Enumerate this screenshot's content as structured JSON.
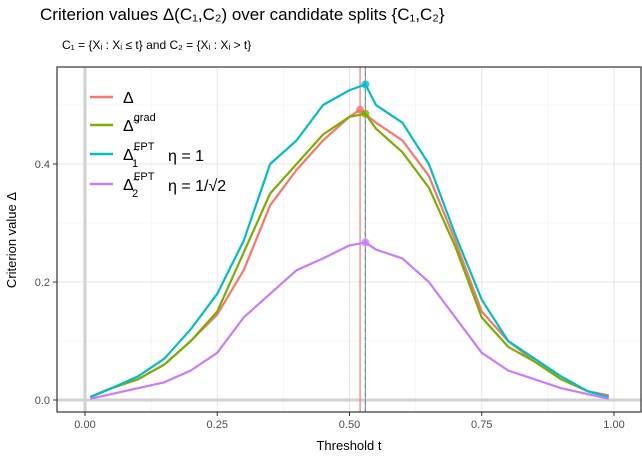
{
  "chart_data": {
    "type": "line",
    "title": "Criterion values Δ(C₁,C₂) over candidate splits {C₁,C₂}",
    "subtitle": "C₁ = {Xᵢ : Xᵢ ≤ t} and C₂ = {Xᵢ : Xᵢ > t}",
    "xlabel": "Threshold t",
    "ylabel": "Criterion value Δ",
    "xlim": [
      -0.04,
      1.04
    ],
    "ylim": [
      -0.01,
      0.565
    ],
    "xticks": [
      "0.00",
      "0.25",
      "0.50",
      "0.75",
      "1.00"
    ],
    "yticks": [
      "0.0",
      "0.2",
      "0.4"
    ],
    "grid": true,
    "legend_position": "top-left",
    "series": [
      {
        "name": "Δ",
        "color": "#F8766D",
        "x": [
          0.01,
          0.05,
          0.1,
          0.15,
          0.2,
          0.25,
          0.3,
          0.35,
          0.4,
          0.45,
          0.5,
          0.52,
          0.55,
          0.6,
          0.65,
          0.7,
          0.75,
          0.8,
          0.85,
          0.9,
          0.95,
          0.99
        ],
        "y": [
          0.005,
          0.02,
          0.035,
          0.06,
          0.1,
          0.145,
          0.22,
          0.33,
          0.39,
          0.44,
          0.48,
          0.492,
          0.47,
          0.44,
          0.38,
          0.27,
          0.15,
          0.1,
          0.065,
          0.04,
          0.015,
          0.008
        ],
        "max_x": 0.52,
        "max_y": 0.492
      },
      {
        "name": "Δ̃ grad",
        "color": "#7CAE00",
        "x": [
          0.01,
          0.05,
          0.1,
          0.15,
          0.2,
          0.25,
          0.3,
          0.35,
          0.4,
          0.45,
          0.5,
          0.53,
          0.55,
          0.6,
          0.65,
          0.7,
          0.75,
          0.8,
          0.85,
          0.9,
          0.95,
          0.99
        ],
        "y": [
          0.005,
          0.02,
          0.035,
          0.06,
          0.1,
          0.15,
          0.25,
          0.35,
          0.4,
          0.45,
          0.48,
          0.485,
          0.46,
          0.42,
          0.36,
          0.26,
          0.14,
          0.09,
          0.065,
          0.035,
          0.015,
          0.005
        ],
        "max_x": 0.53,
        "max_y": 0.485
      },
      {
        "name": "Δ̃₁ FPT η = 1",
        "color": "#00BFC4",
        "x": [
          0.01,
          0.05,
          0.1,
          0.15,
          0.2,
          0.25,
          0.3,
          0.35,
          0.4,
          0.45,
          0.5,
          0.53,
          0.55,
          0.6,
          0.65,
          0.7,
          0.75,
          0.8,
          0.85,
          0.9,
          0.95,
          0.99
        ],
        "y": [
          0.005,
          0.02,
          0.04,
          0.07,
          0.12,
          0.18,
          0.27,
          0.4,
          0.44,
          0.5,
          0.525,
          0.535,
          0.5,
          0.47,
          0.4,
          0.28,
          0.17,
          0.1,
          0.07,
          0.04,
          0.015,
          0.005
        ],
        "max_x": 0.53,
        "max_y": 0.535
      },
      {
        "name": "Δ̃₂ FPT η = 1/√2",
        "color": "#C77CFF",
        "x": [
          0.01,
          0.05,
          0.1,
          0.15,
          0.2,
          0.25,
          0.3,
          0.35,
          0.4,
          0.45,
          0.5,
          0.53,
          0.55,
          0.6,
          0.65,
          0.7,
          0.75,
          0.8,
          0.85,
          0.9,
          0.95,
          0.99
        ],
        "y": [
          0.002,
          0.01,
          0.02,
          0.03,
          0.05,
          0.08,
          0.14,
          0.18,
          0.22,
          0.24,
          0.262,
          0.267,
          0.255,
          0.24,
          0.2,
          0.14,
          0.08,
          0.05,
          0.035,
          0.02,
          0.01,
          0.002
        ],
        "max_x": 0.53,
        "max_y": 0.267
      }
    ],
    "legend": [
      {
        "symbol": "Δ",
        "sup": "",
        "sub": "",
        "eta": ""
      },
      {
        "symbol": "Δ̃",
        "sup": "grad",
        "sub": "",
        "eta": ""
      },
      {
        "symbol": "Δ̃",
        "sup": "FPT",
        "sub": "1",
        "eta": "η = 1"
      },
      {
        "symbol": "Δ̃",
        "sup": "FPT",
        "sub": "2",
        "eta": "η = 1/√2"
      }
    ]
  }
}
